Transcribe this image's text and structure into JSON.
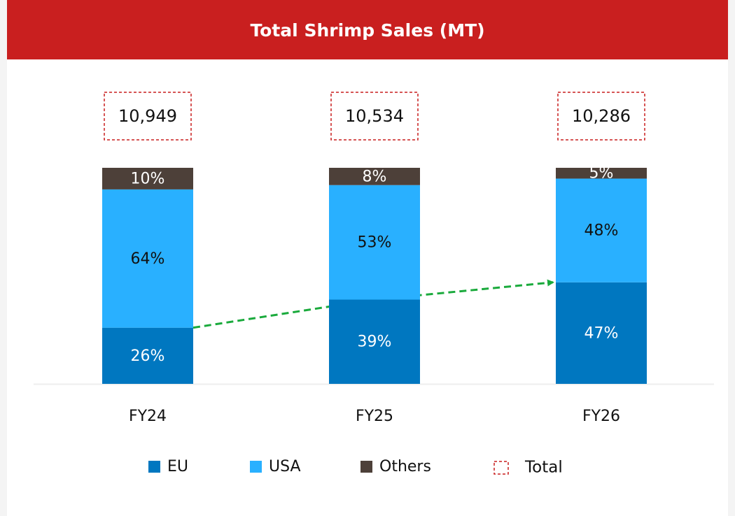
{
  "chart_data": {
    "type": "stacked_bar",
    "title": "Total Shrimp Sales (MT)",
    "categories": [
      "FY24",
      "FY25",
      "FY26"
    ],
    "ylim": [
      0,
      100
    ],
    "series": [
      {
        "name": "EU",
        "color": "#0077c0",
        "values": [
          26,
          39,
          47
        ],
        "value_labels": [
          "26%",
          "39%",
          "47%"
        ]
      },
      {
        "name": "USA",
        "color": "#29b0ff",
        "values": [
          64,
          53,
          48
        ],
        "value_labels": [
          "64%",
          "53%",
          "48%"
        ]
      },
      {
        "name": "Others",
        "color": "#4d4039",
        "values": [
          10,
          8,
          5
        ],
        "value_labels": [
          "10%",
          "8%",
          "5%"
        ]
      }
    ],
    "totals": {
      "name": "Total",
      "color": "#c91f1f",
      "values": [
        10949,
        10534,
        10286
      ],
      "value_labels": [
        "10,949",
        "10,534",
        "10,286"
      ]
    }
  }
}
